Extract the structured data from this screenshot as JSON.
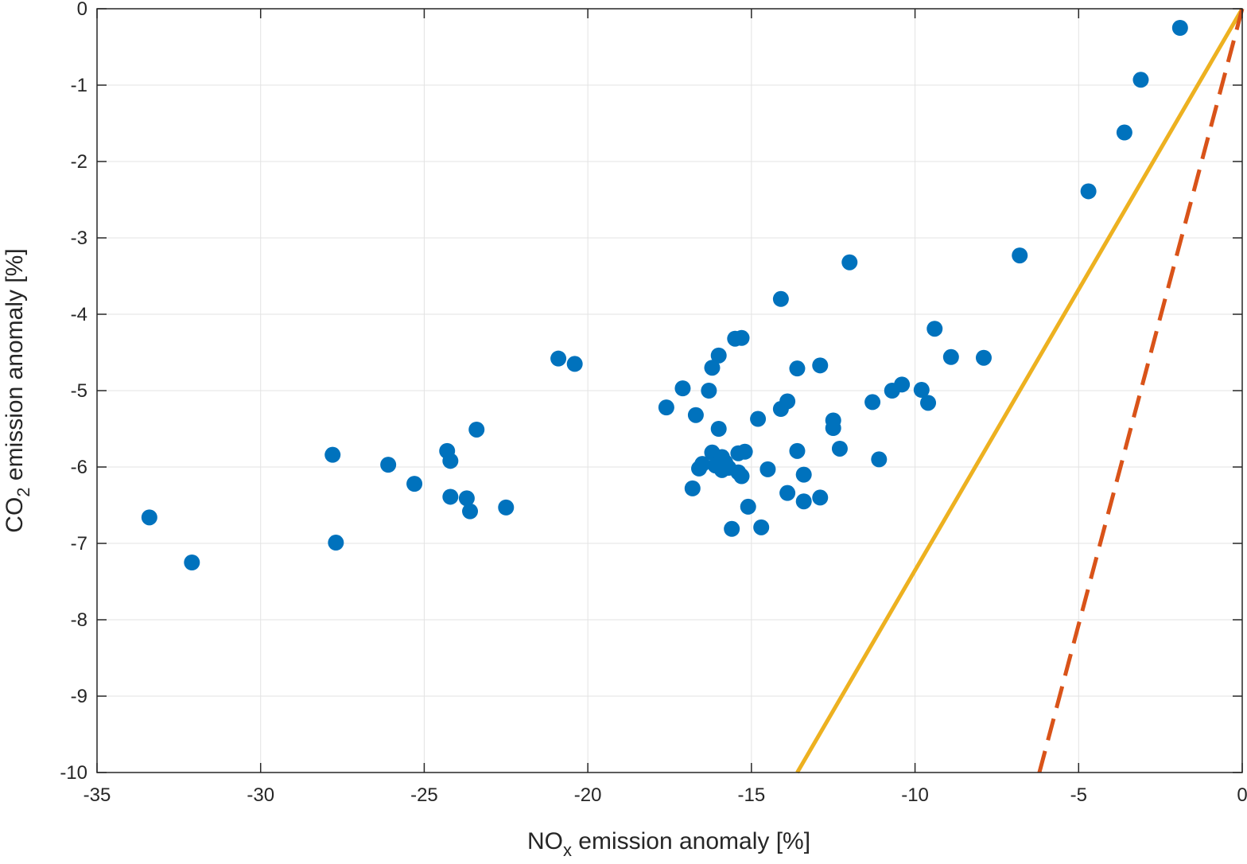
{
  "chart_data": {
    "type": "scatter",
    "xlabel": {
      "main": "NO",
      "sub": "x",
      "rest": " emission anomaly [%]"
    },
    "ylabel": {
      "main": "CO",
      "sub": "2",
      "rest": " emission anomaly [%]"
    },
    "xlim": [
      -35,
      0
    ],
    "ylim": [
      -10,
      0
    ],
    "xticks": [
      -35,
      -30,
      -25,
      -20,
      -15,
      -10,
      -5,
      0
    ],
    "yticks": [
      0,
      -1,
      -2,
      -3,
      -4,
      -5,
      -6,
      -7,
      -8,
      -9,
      -10
    ],
    "grid": true,
    "series": [
      {
        "kind": "scatter",
        "color": "#0072BD",
        "points": [
          [
            -33.4,
            -6.66
          ],
          [
            -32.1,
            -7.25
          ],
          [
            -27.8,
            -5.84
          ],
          [
            -27.7,
            -6.99
          ],
          [
            -26.1,
            -5.97
          ],
          [
            -25.3,
            -6.22
          ],
          [
            -24.3,
            -5.79
          ],
          [
            -24.2,
            -5.92
          ],
          [
            -24.2,
            -6.39
          ],
          [
            -23.7,
            -6.41
          ],
          [
            -23.6,
            -6.58
          ],
          [
            -23.4,
            -5.51
          ],
          [
            -22.5,
            -6.53
          ],
          [
            -20.9,
            -4.58
          ],
          [
            -20.4,
            -4.65
          ],
          [
            -17.6,
            -5.22
          ],
          [
            -17.1,
            -4.97
          ],
          [
            -16.8,
            -6.28
          ],
          [
            -16.7,
            -5.32
          ],
          [
            -16.6,
            -6.02
          ],
          [
            -16.5,
            -5.96
          ],
          [
            -16.3,
            -5.0
          ],
          [
            -16.2,
            -4.7
          ],
          [
            -16.2,
            -5.81
          ],
          [
            -16.1,
            -5.98
          ],
          [
            -16.0,
            -4.54
          ],
          [
            -16.0,
            -5.5
          ],
          [
            -15.9,
            -6.04
          ],
          [
            -15.9,
            -5.87
          ],
          [
            -15.8,
            -5.94
          ],
          [
            -15.7,
            -6.01
          ],
          [
            -15.6,
            -6.81
          ],
          [
            -15.5,
            -4.32
          ],
          [
            -15.4,
            -6.07
          ],
          [
            -15.4,
            -5.82
          ],
          [
            -15.3,
            -4.31
          ],
          [
            -15.3,
            -6.12
          ],
          [
            -15.2,
            -5.8
          ],
          [
            -15.1,
            -6.52
          ],
          [
            -14.8,
            -5.37
          ],
          [
            -14.7,
            -6.79
          ],
          [
            -14.5,
            -6.03
          ],
          [
            -14.1,
            -3.8
          ],
          [
            -14.1,
            -5.24
          ],
          [
            -13.9,
            -5.14
          ],
          [
            -13.9,
            -6.34
          ],
          [
            -13.6,
            -4.71
          ],
          [
            -13.6,
            -5.79
          ],
          [
            -13.4,
            -6.1
          ],
          [
            -13.4,
            -6.45
          ],
          [
            -12.9,
            -4.67
          ],
          [
            -12.9,
            -6.4
          ],
          [
            -12.5,
            -5.39
          ],
          [
            -12.5,
            -5.49
          ],
          [
            -12.3,
            -5.76
          ],
          [
            -12.0,
            -3.32
          ],
          [
            -11.3,
            -5.15
          ],
          [
            -11.1,
            -5.9
          ],
          [
            -10.7,
            -5.0
          ],
          [
            -10.4,
            -4.92
          ],
          [
            -9.8,
            -4.99
          ],
          [
            -9.6,
            -5.16
          ],
          [
            -9.4,
            -4.19
          ],
          [
            -8.9,
            -4.56
          ],
          [
            -7.9,
            -4.57
          ],
          [
            -6.8,
            -3.23
          ],
          [
            -4.7,
            -2.39
          ],
          [
            -3.6,
            -1.62
          ],
          [
            -3.1,
            -0.93
          ],
          [
            -1.9,
            -0.25
          ]
        ]
      },
      {
        "kind": "line",
        "style": "solid",
        "color": "#EDB120",
        "points": [
          [
            -13.6,
            -10
          ],
          [
            0,
            0
          ]
        ]
      },
      {
        "kind": "line",
        "style": "dashed",
        "color": "#D95319",
        "points": [
          [
            -6.2,
            -10
          ],
          [
            0,
            0
          ]
        ]
      }
    ]
  }
}
